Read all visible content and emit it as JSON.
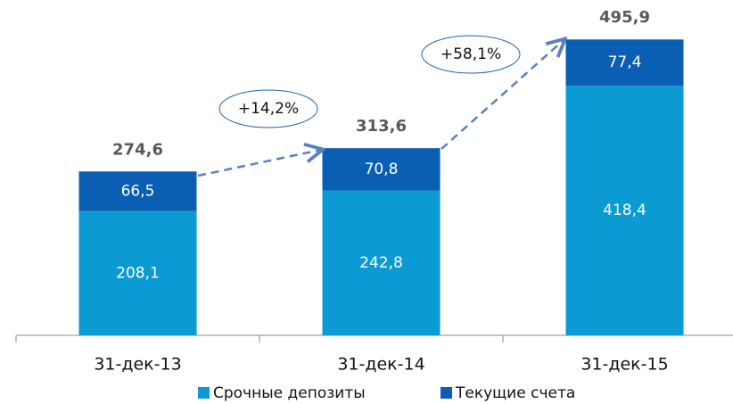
{
  "chart_data": {
    "type": "stacked_bar",
    "categories": [
      "31-дек-13",
      "31-дек-14",
      "31-дек-15"
    ],
    "series": [
      {
        "name": "Срочные депозиты",
        "color": "#0c9ad2",
        "values": [
          208.1,
          242.8,
          418.4
        ],
        "value_labels": [
          "208,1",
          "242,8",
          "418,4"
        ]
      },
      {
        "name": "Текущие счета",
        "color": "#0a5fb4",
        "values": [
          66.5,
          70.8,
          77.4
        ],
        "value_labels": [
          "66,5",
          "70,8",
          "77,4"
        ]
      }
    ],
    "totals": [
      274.6,
      313.6,
      495.9
    ],
    "total_labels": [
      "274,6",
      "313,6",
      "495,9"
    ],
    "annotations": [
      "+14,2%",
      "+58,1%"
    ],
    "ylim": [
      0,
      550
    ]
  }
}
